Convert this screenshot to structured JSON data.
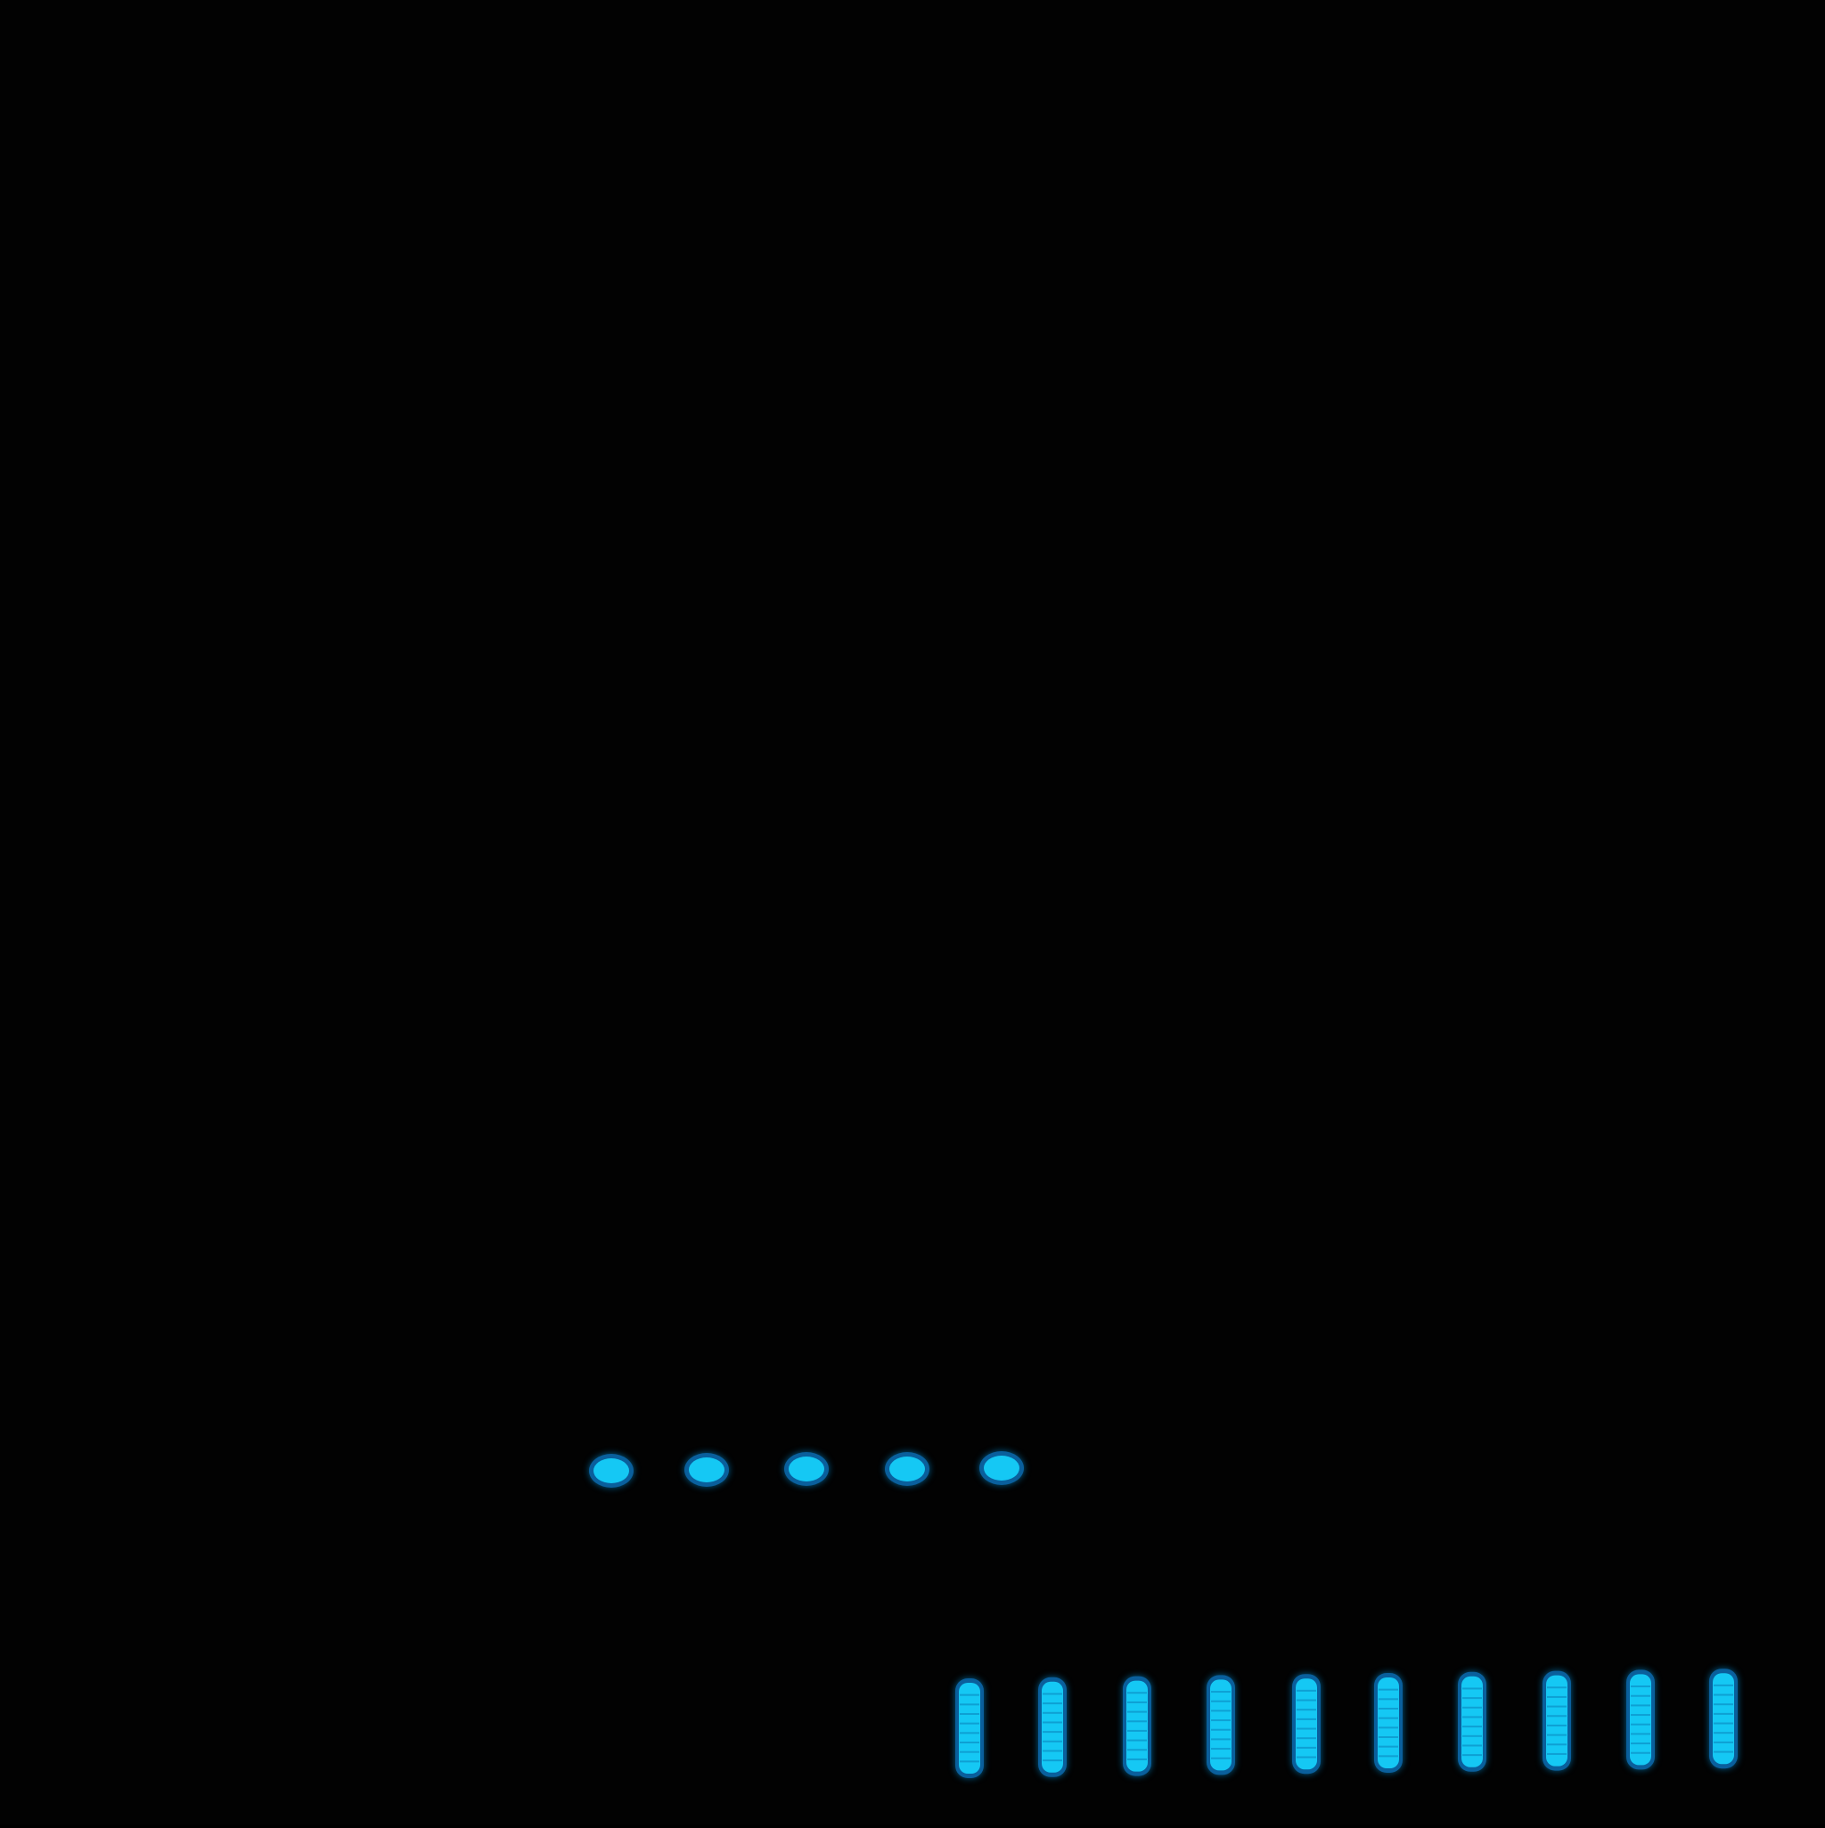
{
  "scene": {
    "background_color": "#020202",
    "light_color": "#15c8f4",
    "light_rim_color": "#0a5f9c",
    "dot_row": {
      "count": 5,
      "shape": "oval"
    },
    "bar_row": {
      "count": 10,
      "shape": "vertical segmented bar",
      "segments_per_bar": 9
    }
  }
}
